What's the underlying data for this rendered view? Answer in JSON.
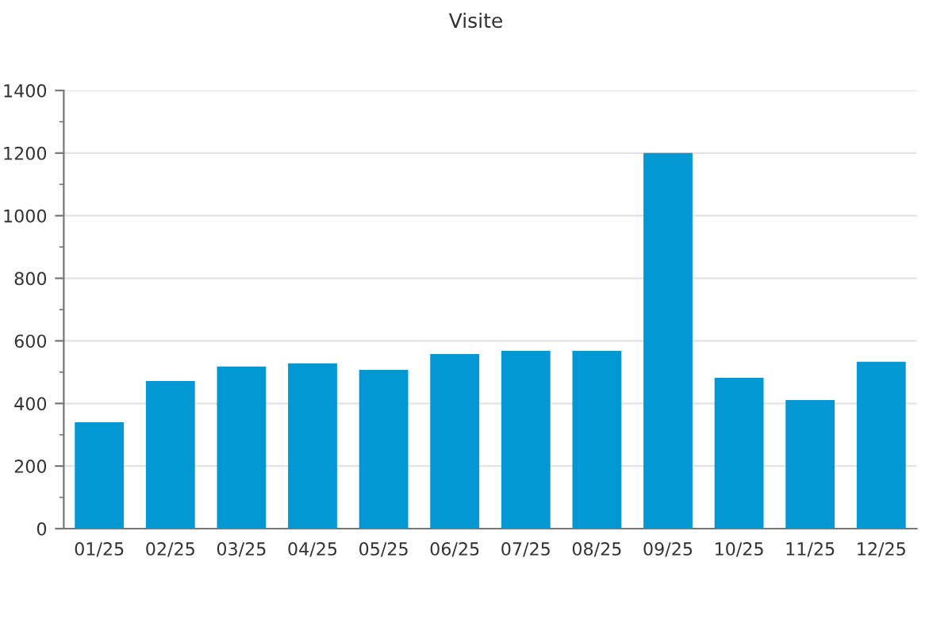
{
  "chart_data": {
    "type": "bar",
    "title": "Visite",
    "categories": [
      "01/25",
      "02/25",
      "03/25",
      "04/25",
      "05/25",
      "06/25",
      "07/25",
      "08/25",
      "09/25",
      "10/25",
      "11/25",
      "12/25"
    ],
    "values": [
      340,
      472,
      518,
      528,
      507,
      558,
      568,
      568,
      1200,
      482,
      411,
      533
    ],
    "color": "#0398d4",
    "ylim": [
      0,
      1400
    ],
    "yticks": [
      0,
      200,
      400,
      600,
      800,
      1000,
      1200,
      1400
    ],
    "grid": "y",
    "legend": false
  }
}
